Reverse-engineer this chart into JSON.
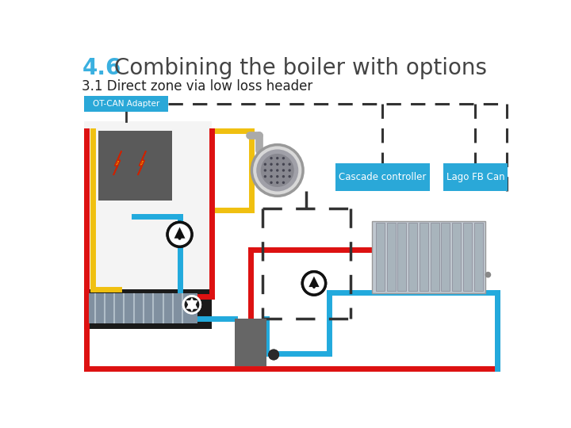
{
  "title_num": "4.6",
  "title_text": "Combining the boiler with options",
  "subtitle": "3.1 Direct zone via low loss header",
  "title_num_color": "#3ab0e0",
  "title_text_color": "#444444",
  "subtitle_color": "#222222",
  "bg_color": "#ffffff",
  "box_blue": "#2aa8d8",
  "box_text_color": "#ffffff",
  "line_red": "#dd1111",
  "line_blue": "#22aadd",
  "line_yellow": "#f0c010",
  "dash_color": "#333333",
  "boiler_bg": "#f0f0f0",
  "boiler_black_band": "#1a1a1a",
  "burner_gray": "#606060",
  "pump_color": "#111111",
  "otcan_label": "OT-CAN Adapter",
  "cascade_label": "Cascade controller",
  "lago_label": "Lago FB Can"
}
